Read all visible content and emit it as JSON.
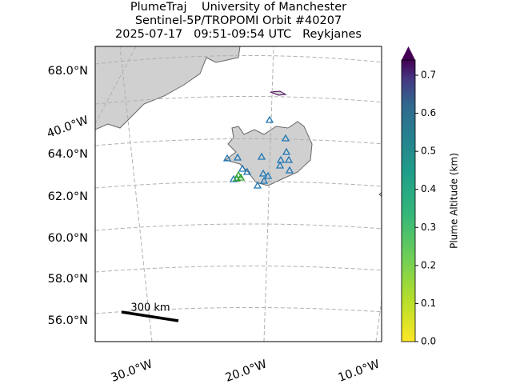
{
  "title_lines": [
    "PlumeTraj    University of Manchester",
    "Sentinel-5P/TROPOMI Orbit #40207",
    "2025-07-17   09:51-09:54 UTC   Reykjanes"
  ],
  "lat_labels": [
    "68.0°N",
    "64.0°N",
    "62.0°N",
    "60.0°N",
    "58.0°N",
    "56.0°N"
  ],
  "lon_labels": [
    "40.0°W",
    "30.0°W",
    "20.0°W",
    "10.0°W"
  ],
  "scale_bar": "300 km",
  "colorbar": {
    "label": "Plume Altitude (km)",
    "lim": [
      0,
      0.74
    ],
    "ticks": [
      {
        "value": 0,
        "label": "0.0"
      },
      {
        "value": 0.1,
        "label": "0.1"
      },
      {
        "value": 0.2,
        "label": "0.2"
      },
      {
        "value": 0.3,
        "label": "0.3"
      },
      {
        "value": 0.4,
        "label": "0.4"
      },
      {
        "value": 0.5,
        "label": "0.5"
      },
      {
        "value": 0.6,
        "label": "0.6"
      },
      {
        "value": 0.7,
        "label": "0.7"
      }
    ]
  }
}
